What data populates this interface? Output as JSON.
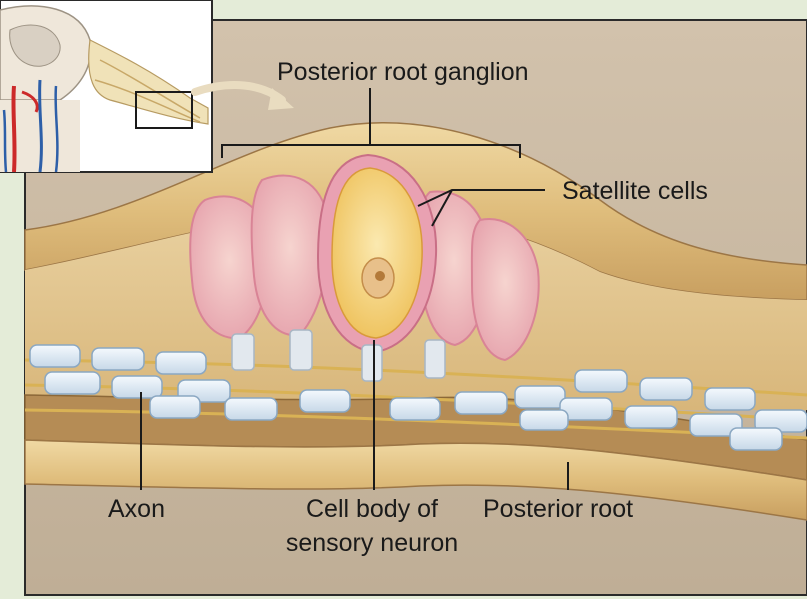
{
  "labels": {
    "posterior_root_ganglion": "Posterior root ganglion",
    "satellite_cells": "Satellite cells",
    "axon": "Axon",
    "cell_body_line1": "Cell body of",
    "cell_body_line2": "sensory neuron",
    "posterior_root": "Posterior root"
  },
  "colors": {
    "background": "#e4ecd8",
    "panel": "#c9b8a2",
    "sheath_light": "#e6c88c",
    "sheath_dark": "#b38a52",
    "neuron_body": "#f3d27a",
    "satellite_cell": "#e79bb0",
    "schwann_cell": "#d8e6f2",
    "spinal_vessel_red": "#cc2a2a",
    "spinal_vessel_blue": "#2d5fa8"
  },
  "icons": {
    "inset": "spinal-cord-cross-section-icon",
    "arrow": "curved-arrow-icon"
  }
}
